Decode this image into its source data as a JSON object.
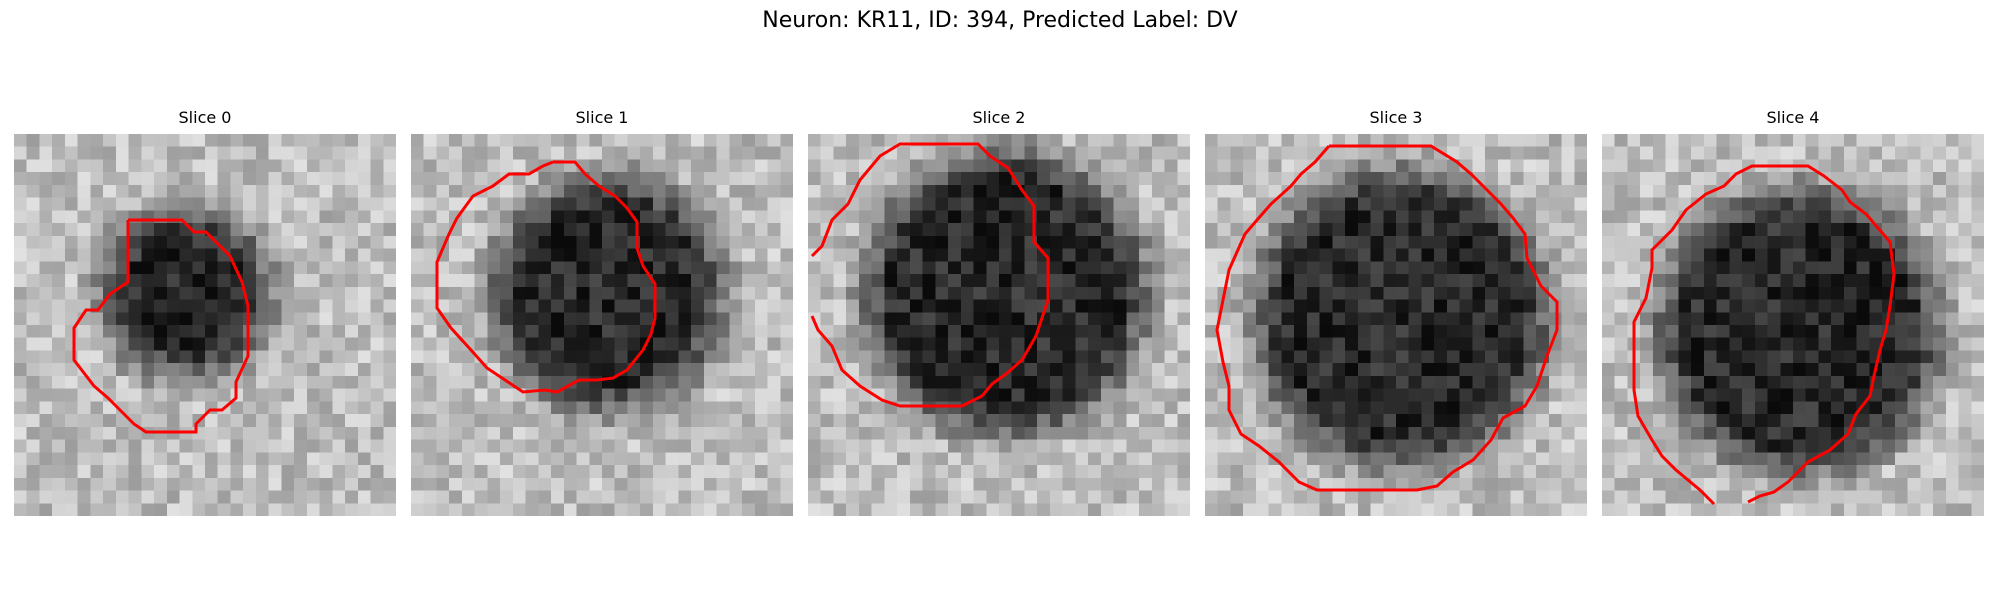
{
  "figure": {
    "title": "Neuron: KR11, ID: 394, Predicted Label: DV",
    "contour_color": "#ff0000"
  },
  "panels": [
    {
      "title": "Slice 0"
    },
    {
      "title": "Slice 1"
    },
    {
      "title": "Slice 2"
    },
    {
      "title": "Slice 3"
    },
    {
      "title": "Slice 4"
    }
  ]
}
